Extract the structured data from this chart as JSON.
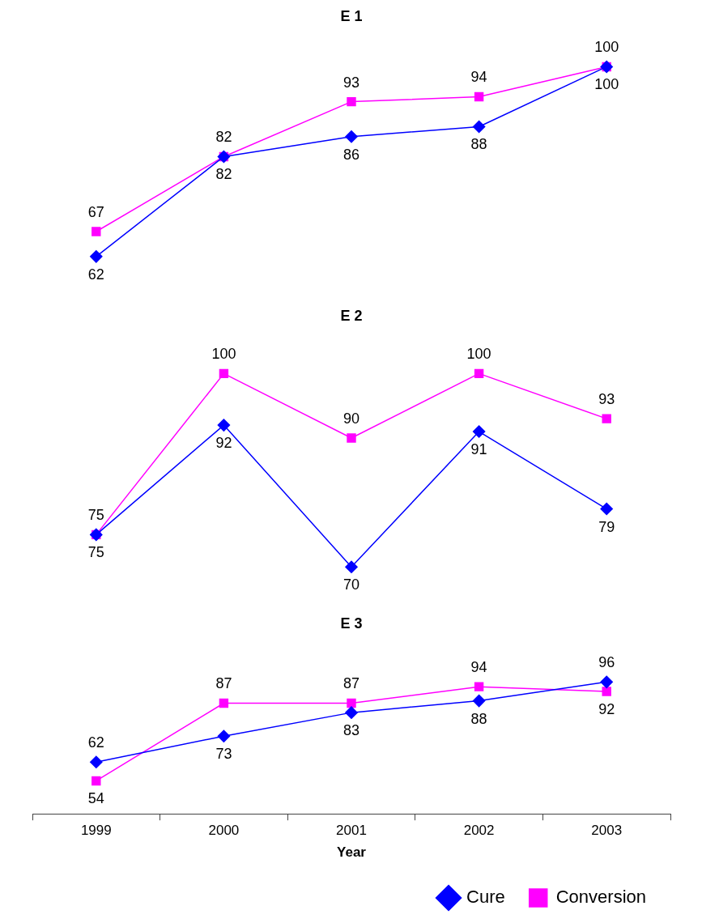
{
  "chart_data": [
    {
      "type": "line",
      "title": "E 1",
      "categories": [
        "1999",
        "2000",
        "2001",
        "2002",
        "2003"
      ],
      "series": [
        {
          "color": "#0000ff",
          "marker": "diamond",
          "values": [
            62,
            82,
            86,
            88,
            100
          ]
        },
        {
          "color": "#ff00ff",
          "marker": "square",
          "values": [
            67,
            82,
            93,
            94,
            100
          ]
        }
      ],
      "data_labels": true,
      "tick_labels": false,
      "legend": false
    },
    {
      "type": "line",
      "title": "E 2",
      "categories": [
        "1999",
        "2000",
        "2001",
        "2002",
        "2003"
      ],
      "series": [
        {
          "color": "#0000ff",
          "marker": "diamond",
          "values": [
            75,
            92,
            70,
            91,
            79
          ]
        },
        {
          "color": "#ff00ff",
          "marker": "square",
          "values": [
            75,
            100,
            90,
            100,
            93
          ]
        }
      ],
      "data_labels": true,
      "tick_labels": false,
      "legend": false
    },
    {
      "type": "line",
      "title": "E 3",
      "xlabel": "Year",
      "categories": [
        "1999",
        "2000",
        "2001",
        "2002",
        "2003"
      ],
      "series": [
        {
          "name": "Cure",
          "color": "#0000ff",
          "marker": "diamond",
          "values": [
            62,
            73,
            83,
            88,
            96
          ]
        },
        {
          "name": "Conversion",
          "color": "#ff00ff",
          "marker": "square",
          "values": [
            54,
            87,
            87,
            94,
            92
          ]
        }
      ],
      "data_labels": true,
      "tick_labels": "x",
      "legend": "bottom right"
    }
  ]
}
